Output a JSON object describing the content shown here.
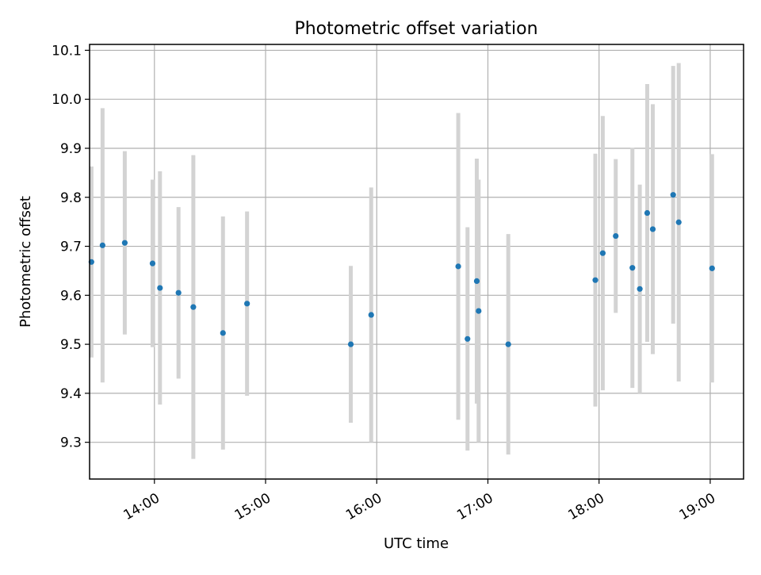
{
  "chart_data": {
    "type": "scatter",
    "title": "Photometric offset variation",
    "xlabel": "UTC time",
    "ylabel": "Photometric offset",
    "x_unit": "UTC time (HH:MM)",
    "xlim": [
      "13:25",
      "19:18"
    ],
    "ylim": [
      9.225,
      10.112
    ],
    "x_ticks": [
      "14:00",
      "15:00",
      "16:00",
      "17:00",
      "18:00",
      "19:00"
    ],
    "y_ticks": [
      9.3,
      9.4,
      9.5,
      9.6,
      9.7,
      9.8,
      9.9,
      10.0,
      10.1
    ],
    "y_tick_labels": [
      "9.3",
      "9.4",
      "9.5",
      "9.6",
      "9.7",
      "9.8",
      "9.9",
      "10.0",
      "10.1"
    ],
    "grid": true,
    "marker_color": "#1f77b4",
    "errorbar_color": "#d3d3d3",
    "points": [
      {
        "x": "13:26",
        "y": 9.668,
        "err": 0.195
      },
      {
        "x": "13:32",
        "y": 9.702,
        "err": 0.28
      },
      {
        "x": "13:44",
        "y": 9.707,
        "err": 0.187
      },
      {
        "x": "13:59",
        "y": 9.665,
        "err": 0.171
      },
      {
        "x": "14:03",
        "y": 9.615,
        "err": 0.238
      },
      {
        "x": "14:13",
        "y": 9.605,
        "err": 0.175
      },
      {
        "x": "14:21",
        "y": 9.576,
        "err": 0.31
      },
      {
        "x": "14:37",
        "y": 9.523,
        "err": 0.238
      },
      {
        "x": "14:50",
        "y": 9.583,
        "err": 0.188
      },
      {
        "x": "15:46",
        "y": 9.5,
        "err": 0.16
      },
      {
        "x": "15:57",
        "y": 9.56,
        "err": 0.26
      },
      {
        "x": "16:44",
        "y": 9.659,
        "err": 0.313
      },
      {
        "x": "16:49",
        "y": 9.511,
        "err": 0.228
      },
      {
        "x": "16:54",
        "y": 9.629,
        "err": 0.25
      },
      {
        "x": "16:55",
        "y": 9.568,
        "err": 0.268
      },
      {
        "x": "17:11",
        "y": 9.5,
        "err": 0.225
      },
      {
        "x": "17:58",
        "y": 9.631,
        "err": 0.258
      },
      {
        "x": "18:02",
        "y": 9.686,
        "err": 0.28
      },
      {
        "x": "18:09",
        "y": 9.721,
        "err": 0.157
      },
      {
        "x": "18:18",
        "y": 9.656,
        "err": 0.245
      },
      {
        "x": "18:22",
        "y": 9.613,
        "err": 0.213
      },
      {
        "x": "18:26",
        "y": 9.768,
        "err": 0.263
      },
      {
        "x": "18:29",
        "y": 9.735,
        "err": 0.255
      },
      {
        "x": "18:40",
        "y": 9.805,
        "err": 0.263
      },
      {
        "x": "18:43",
        "y": 9.749,
        "err": 0.325
      },
      {
        "x": "19:01",
        "y": 9.655,
        "err": 0.233
      }
    ]
  }
}
